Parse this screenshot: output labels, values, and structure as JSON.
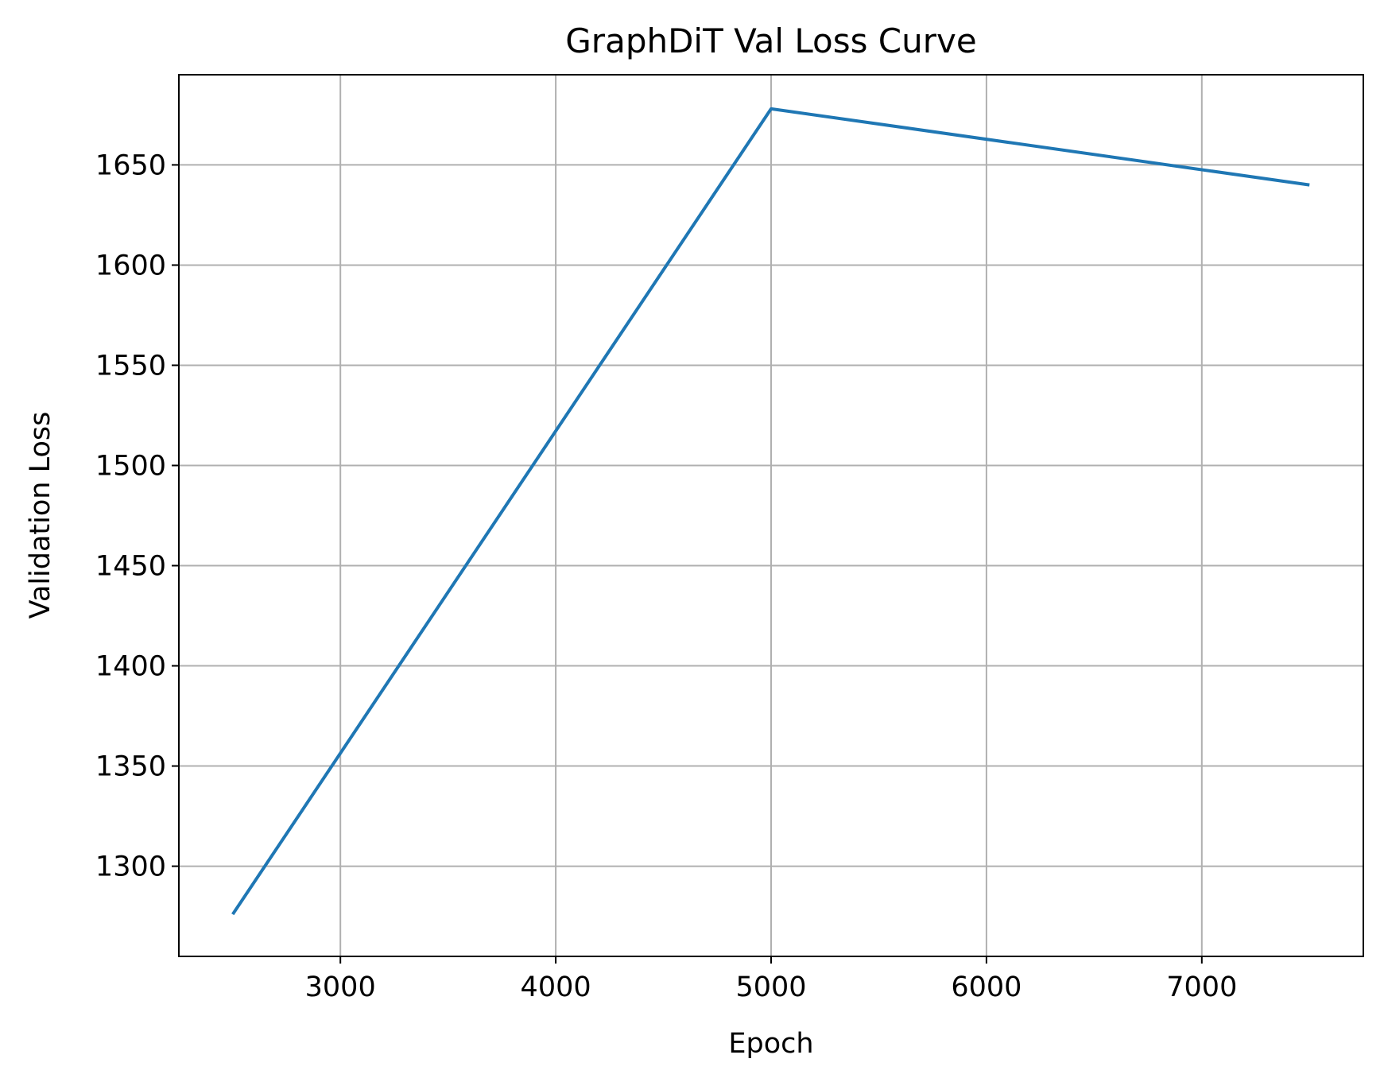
{
  "chart_data": {
    "type": "line",
    "title": "GraphDiT Val Loss Curve",
    "xlabel": "Epoch",
    "ylabel": "Validation Loss",
    "xlim": [
      2250,
      7750
    ],
    "ylim": [
      1255,
      1695
    ],
    "xticks": [
      3000,
      4000,
      5000,
      6000,
      7000
    ],
    "yticks": [
      1300,
      1350,
      1400,
      1450,
      1500,
      1550,
      1600,
      1650
    ],
    "grid": true,
    "series": [
      {
        "color": "#1f77b4",
        "x": [
          2500,
          5000,
          7500
        ],
        "y": [
          1276,
          1678,
          1640
        ]
      }
    ]
  }
}
